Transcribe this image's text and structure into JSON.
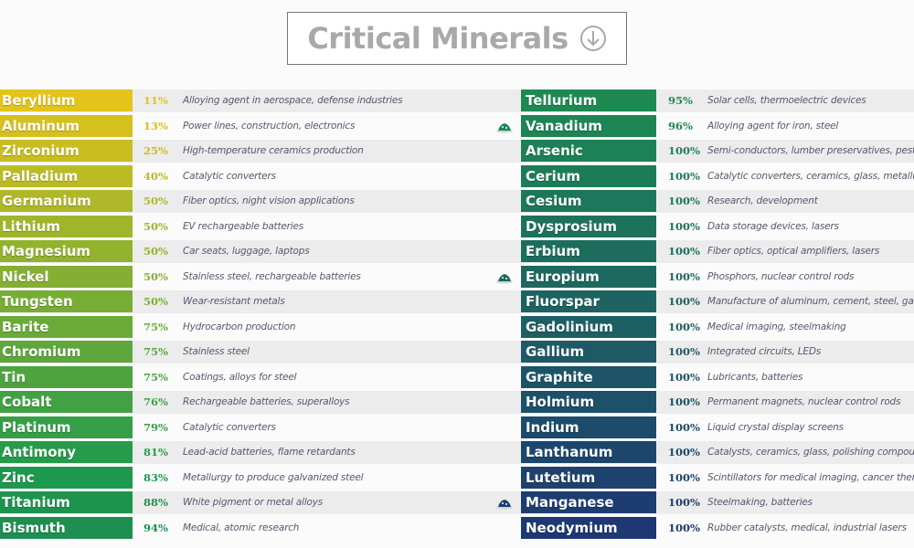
{
  "title": {
    "text": "Critical Minerals",
    "icon": "arrow-down-circle-icon"
  },
  "colors": {
    "start": "#e4c31a",
    "middle": "#1d9a4c",
    "end": "#1d3872",
    "title": "#a9a9a9",
    "description": "#5b5670"
  },
  "left_column": [
    {
      "name": "Beryllium",
      "pct": "11%",
      "use": "Alloying agent in aerospace, defense industries"
    },
    {
      "name": "Aluminum",
      "pct": "13%",
      "use": "Power lines, construction, electronics"
    },
    {
      "name": "Zirconium",
      "pct": "25%",
      "use": "High-temperature ceramics production"
    },
    {
      "name": "Palladium",
      "pct": "40%",
      "use": "Catalytic converters"
    },
    {
      "name": "Germanium",
      "pct": "50%",
      "use": "Fiber optics, night vision applications"
    },
    {
      "name": "Lithium",
      "pct": "50%",
      "use": "EV rechargeable batteries"
    },
    {
      "name": "Magnesium",
      "pct": "50%",
      "use": "Car seats, luggage, laptops"
    },
    {
      "name": "Nickel",
      "pct": "50%",
      "use": "Stainless steel, rechargeable batteries"
    },
    {
      "name": "Tungsten",
      "pct": "50%",
      "use": "Wear-resistant metals"
    },
    {
      "name": "Barite",
      "pct": "75%",
      "use": "Hydrocarbon production"
    },
    {
      "name": "Chromium",
      "pct": "75%",
      "use": "Stainless steel"
    },
    {
      "name": "Tin",
      "pct": "75%",
      "use": "Coatings, alloys for steel"
    },
    {
      "name": "Cobalt",
      "pct": "76%",
      "use": "Rechargeable batteries, superalloys"
    },
    {
      "name": "Platinum",
      "pct": "79%",
      "use": "Catalytic converters"
    },
    {
      "name": "Antimony",
      "pct": "81%",
      "use": "Lead-acid batteries, flame retardants"
    },
    {
      "name": "Zinc",
      "pct": "83%",
      "use": "Metallurgy to produce galvanized steel"
    },
    {
      "name": "Titanium",
      "pct": "88%",
      "use": "White pigment or metal alloys"
    },
    {
      "name": "Bismuth",
      "pct": "94%",
      "use": "Medical, atomic research"
    }
  ],
  "right_column": [
    {
      "name": "Tellurium",
      "pct": "95%",
      "use": "Solar cells, thermoelectric devices"
    },
    {
      "name": "Vanadium",
      "pct": "96%",
      "use": "Alloying agent for iron, steel",
      "icon": "mineral-pile-icon"
    },
    {
      "name": "Arsenic",
      "pct": "100%",
      "use": "Semi-conductors, lumber preservatives, pestic"
    },
    {
      "name": "Cerium",
      "pct": "100%",
      "use": "Catalytic converters, ceramics, glass, metallurg"
    },
    {
      "name": "Cesium",
      "pct": "100%",
      "use": "Research, development"
    },
    {
      "name": "Dysprosium",
      "pct": "100%",
      "use": "Data storage devices, lasers"
    },
    {
      "name": "Erbium",
      "pct": "100%",
      "use": "Fiber optics, optical amplifiers, lasers"
    },
    {
      "name": "Europium",
      "pct": "100%",
      "use": "Phosphors, nuclear control rods",
      "icon": "mineral-pile-icon"
    },
    {
      "name": "Fluorspar",
      "pct": "100%",
      "use": "Manufacture of aluminum, cement, steel, gaso"
    },
    {
      "name": "Gadolinium",
      "pct": "100%",
      "use": "Medical imaging, steelmaking"
    },
    {
      "name": "Gallium",
      "pct": "100%",
      "use": "Integrated circuits, LEDs"
    },
    {
      "name": "Graphite",
      "pct": "100%",
      "use": "Lubricants, batteries"
    },
    {
      "name": "Holmium",
      "pct": "100%",
      "use": "Permanent magnets, nuclear control rods"
    },
    {
      "name": "Indium",
      "pct": "100%",
      "use": "Liquid crystal display screens"
    },
    {
      "name": "Lanthanum",
      "pct": "100%",
      "use": "Catalysts, ceramics, glass, polishing compoun"
    },
    {
      "name": "Lutetium",
      "pct": "100%",
      "use": "Scintillators for medical imaging, cancer thera"
    },
    {
      "name": "Manganese",
      "pct": "100%",
      "use": "Steelmaking, batteries",
      "icon": "mineral-pile-icon"
    },
    {
      "name": "Neodymium",
      "pct": "100%",
      "use": "Rubber catalysts, medical, industrial lasers"
    }
  ]
}
